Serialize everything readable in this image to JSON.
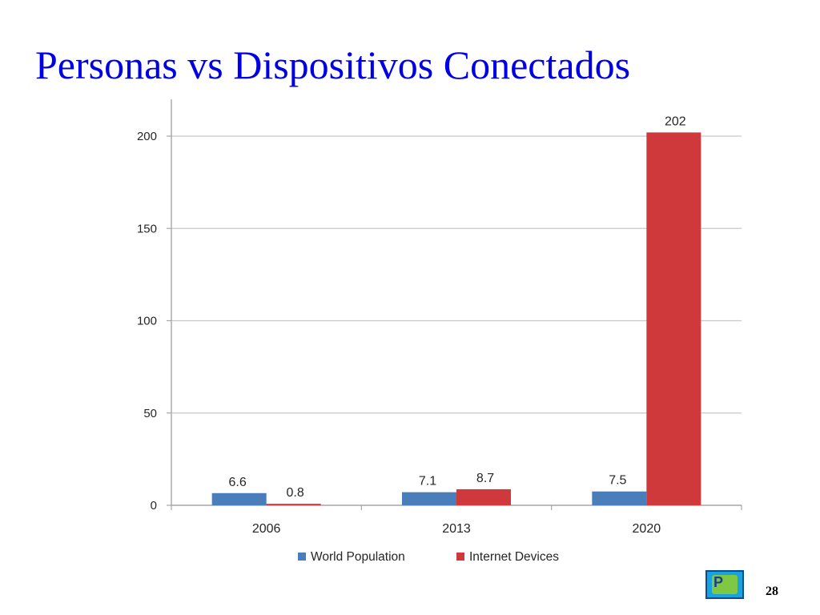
{
  "slide": {
    "title": "Personas vs Dispositivos Conectados",
    "number": "28",
    "logo_icon": "presentation-logo-icon"
  },
  "chart_data": {
    "type": "bar",
    "categories": [
      "2006",
      "2013",
      "2020"
    ],
    "series": [
      {
        "name": "World Population",
        "values": [
          6.6,
          7.1,
          7.5
        ],
        "labels": [
          "6.6",
          "7.1",
          "7.5"
        ],
        "color": "#4a7ebb"
      },
      {
        "name": "Internet Devices",
        "values": [
          0.8,
          8.7,
          202
        ],
        "labels": [
          "0.8",
          "8.7",
          "202"
        ],
        "color": "#d0393c"
      }
    ],
    "yticks": [
      "0",
      "50",
      "100",
      "150",
      "200"
    ],
    "ylim": [
      0,
      220
    ],
    "grid": true,
    "legend": "bottom",
    "title": "",
    "xlabel": "",
    "ylabel": ""
  }
}
